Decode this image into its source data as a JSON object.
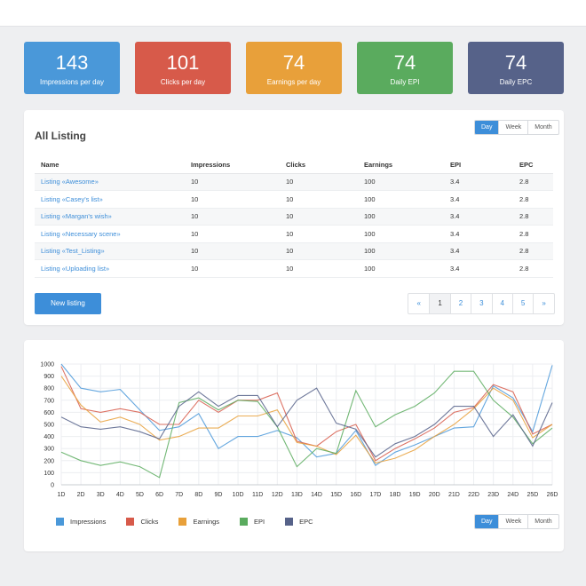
{
  "stats": [
    {
      "value": "143",
      "label": "Impressions per day",
      "color": "#4a98d9"
    },
    {
      "value": "101",
      "label": "Clicks per day",
      "color": "#d75a4a"
    },
    {
      "value": "74",
      "label": "Earnings per day",
      "color": "#e8a03a"
    },
    {
      "value": "74",
      "label": "Daily EPI",
      "color": "#5aab5e"
    },
    {
      "value": "74",
      "label": "Daily EPC",
      "color": "#566289"
    }
  ],
  "listing": {
    "title": "All Listing",
    "period_toggle": [
      "Day",
      "Week",
      "Month"
    ],
    "active_period": "Day",
    "columns": [
      "Name",
      "Impressions",
      "Clicks",
      "Earnings",
      "EPI",
      "EPC"
    ],
    "rows": [
      [
        "Listing «Awesome»",
        "10",
        "10",
        "100",
        "3.4",
        "2.8"
      ],
      [
        "Listing «Casey's list»",
        "10",
        "10",
        "100",
        "3.4",
        "2.8"
      ],
      [
        "Listing «Margan's wish»",
        "10",
        "10",
        "100",
        "3.4",
        "2.8"
      ],
      [
        "Listing «Necessary scene»",
        "10",
        "10",
        "100",
        "3.4",
        "2.8"
      ],
      [
        "Listing «Test_Listing»",
        "10",
        "10",
        "100",
        "3.4",
        "2.8"
      ],
      [
        "Listing «Uploading list»",
        "10",
        "10",
        "100",
        "3.4",
        "2.8"
      ]
    ],
    "new_button": "New listing",
    "pagination": [
      "«",
      "1",
      "2",
      "3",
      "4",
      "5",
      "»"
    ],
    "active_page": "1"
  },
  "chart_toggle": [
    "Day",
    "Week",
    "Month"
  ],
  "chart_active_period": "Day",
  "chart_data": {
    "type": "line",
    "x": [
      "1D",
      "2D",
      "3D",
      "4D",
      "5D",
      "6D",
      "7D",
      "8D",
      "9D",
      "10D",
      "11D",
      "12D",
      "13D",
      "14D",
      "15D",
      "16D",
      "17D",
      "18D",
      "19D",
      "20D",
      "21D",
      "22D",
      "23D",
      "24D",
      "25D",
      "26D"
    ],
    "ylim": [
      0,
      1000
    ],
    "yticks": [
      0,
      100,
      200,
      300,
      400,
      500,
      600,
      700,
      800,
      900,
      1000
    ],
    "grid": true,
    "legend": "bottom-left",
    "series": [
      {
        "name": "Impressions",
        "color": "#4a98d9",
        "values": [
          1000,
          800,
          770,
          790,
          620,
          450,
          480,
          590,
          300,
          400,
          400,
          450,
          390,
          230,
          260,
          450,
          160,
          270,
          330,
          400,
          470,
          480,
          820,
          720,
          440,
          990
        ]
      },
      {
        "name": "Clicks",
        "color": "#d75a4a",
        "values": [
          980,
          630,
          600,
          630,
          600,
          500,
          500,
          700,
          600,
          700,
          700,
          760,
          360,
          320,
          440,
          500,
          200,
          300,
          380,
          470,
          600,
          640,
          830,
          770,
          420,
          500
        ]
      },
      {
        "name": "Earnings",
        "color": "#e8a03a",
        "values": [
          900,
          660,
          520,
          560,
          500,
          370,
          400,
          470,
          470,
          570,
          570,
          620,
          350,
          320,
          250,
          410,
          180,
          220,
          290,
          400,
          500,
          630,
          800,
          700,
          390,
          500
        ]
      },
      {
        "name": "EPI",
        "color": "#5aab5e",
        "values": [
          270,
          200,
          160,
          190,
          150,
          60,
          680,
          720,
          620,
          700,
          690,
          480,
          150,
          300,
          260,
          780,
          480,
          580,
          650,
          760,
          940,
          940,
          700,
          560,
          340,
          470
        ]
      },
      {
        "name": "EPC",
        "color": "#566289",
        "values": [
          560,
          480,
          460,
          480,
          440,
          380,
          650,
          770,
          650,
          740,
          740,
          480,
          700,
          800,
          510,
          460,
          230,
          340,
          400,
          500,
          650,
          650,
          400,
          580,
          320,
          680
        ]
      }
    ]
  }
}
